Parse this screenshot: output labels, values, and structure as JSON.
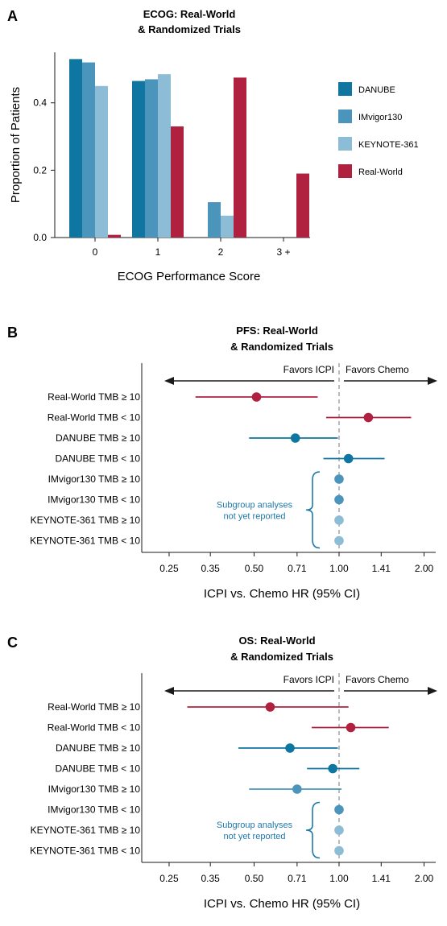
{
  "colors": {
    "danube": "#0e76a0",
    "imvigor": "#4b95bd",
    "keynote": "#8dbcd6",
    "realworld": "#b0203f",
    "note": "#1f78a8",
    "axis": "#1a1a1a",
    "ref_line": "#777777"
  },
  "chart_data": [
    {
      "panel_letter": "A",
      "type": "bar",
      "title_line1": "ECOG: Real-World",
      "title_line2": "& Randomized Trials",
      "xlabel": "ECOG Performance Score",
      "ylabel": "Proportion of Patients",
      "ylim": [
        0,
        0.55
      ],
      "yticks": [
        "0.0",
        "0.2",
        "0.4"
      ],
      "categories": [
        "0",
        "1",
        "2",
        "3 +"
      ],
      "legend_position": "right",
      "series": [
        {
          "name": "DANUBE",
          "color_key": "danube",
          "values": [
            0.53,
            0.465,
            null,
            null
          ]
        },
        {
          "name": "IMvigor130",
          "color_key": "imvigor",
          "values": [
            0.52,
            0.47,
            0.105,
            null
          ]
        },
        {
          "name": "KEYNOTE-361",
          "color_key": "keynote",
          "values": [
            0.45,
            0.485,
            0.065,
            null
          ]
        },
        {
          "name": "Real-World",
          "color_key": "realworld",
          "values": [
            0.008,
            0.33,
            0.475,
            0.19
          ]
        }
      ]
    },
    {
      "panel_letter": "B",
      "type": "scatter",
      "subtype": "forest",
      "title_line1": "PFS: Real-World",
      "title_line2": "& Randomized Trials",
      "xlabel": "ICPI vs. Chemo HR (95% CI)",
      "x_scale": "log",
      "xlim": [
        0.2,
        2.2
      ],
      "xticks": [
        0.25,
        0.35,
        0.5,
        0.71,
        1.0,
        1.41,
        2.0
      ],
      "xtick_labels": [
        "0.25",
        "0.35",
        "0.50",
        "0.71",
        "1.00",
        "1.41",
        "2.00"
      ],
      "favors_left": "Favors ICPI",
      "favors_right": "Favors Chemo",
      "note_line1": "Subgroup analyses",
      "note_line2": "not yet reported",
      "rows": [
        {
          "label": "Real-World TMB ≥ 10",
          "color_key": "realworld",
          "hr": 0.51,
          "lo": 0.31,
          "hi": 0.84
        },
        {
          "label": "Real-World TMB < 10",
          "color_key": "realworld",
          "hr": 1.27,
          "lo": 0.9,
          "hi": 1.8
        },
        {
          "label": "DANUBE TMB ≥ 10",
          "color_key": "danube",
          "hr": 0.7,
          "lo": 0.48,
          "hi": 0.99
        },
        {
          "label": "DANUBE TMB < 10",
          "color_key": "danube",
          "hr": 1.08,
          "lo": 0.88,
          "hi": 1.45
        },
        {
          "label": "IMvigor130 TMB ≥ 10",
          "color_key": "imvigor",
          "hr": 1.0,
          "lo": null,
          "hi": null
        },
        {
          "label": "IMvigor130 TMB < 10",
          "color_key": "imvigor",
          "hr": 1.0,
          "lo": null,
          "hi": null
        },
        {
          "label": "KEYNOTE-361 TMB ≥ 10",
          "color_key": "keynote",
          "hr": 1.0,
          "lo": null,
          "hi": null
        },
        {
          "label": "KEYNOTE-361 TMB < 10",
          "color_key": "keynote",
          "hr": 1.0,
          "lo": null,
          "hi": null
        }
      ]
    },
    {
      "panel_letter": "C",
      "type": "scatter",
      "subtype": "forest",
      "title_line1": "OS: Real-World",
      "title_line2": "& Randomized Trials",
      "xlabel": "ICPI vs. Chemo HR (95% CI)",
      "x_scale": "log",
      "xlim": [
        0.2,
        2.2
      ],
      "xticks": [
        0.25,
        0.35,
        0.5,
        0.71,
        1.0,
        1.41,
        2.0
      ],
      "xtick_labels": [
        "0.25",
        "0.35",
        "0.50",
        "0.71",
        "1.00",
        "1.41",
        "2.00"
      ],
      "favors_left": "Favors ICPI",
      "favors_right": "Favors Chemo",
      "note_line1": "Subgroup analyses",
      "note_line2": "not yet reported",
      "rows": [
        {
          "label": "Real-World TMB ≥ 10",
          "color_key": "realworld",
          "hr": 0.57,
          "lo": 0.29,
          "hi": 1.08
        },
        {
          "label": "Real-World TMB < 10",
          "color_key": "realworld",
          "hr": 1.1,
          "lo": 0.8,
          "hi": 1.5
        },
        {
          "label": "DANUBE TMB ≥ 10",
          "color_key": "danube",
          "hr": 0.67,
          "lo": 0.44,
          "hi": 0.99
        },
        {
          "label": "DANUBE TMB < 10",
          "color_key": "danube",
          "hr": 0.95,
          "lo": 0.77,
          "hi": 1.18
        },
        {
          "label": "IMvigor130 TMB ≥ 10",
          "color_key": "imvigor",
          "hr": 0.71,
          "lo": 0.48,
          "hi": 1.02
        },
        {
          "label": "IMvigor130 TMB < 10",
          "color_key": "imvigor",
          "hr": 1.0,
          "lo": null,
          "hi": null
        },
        {
          "label": "KEYNOTE-361 TMB ≥ 10",
          "color_key": "keynote",
          "hr": 1.0,
          "lo": null,
          "hi": null
        },
        {
          "label": "KEYNOTE-361 TMB < 10",
          "color_key": "keynote",
          "hr": 1.0,
          "lo": null,
          "hi": null
        }
      ]
    }
  ]
}
